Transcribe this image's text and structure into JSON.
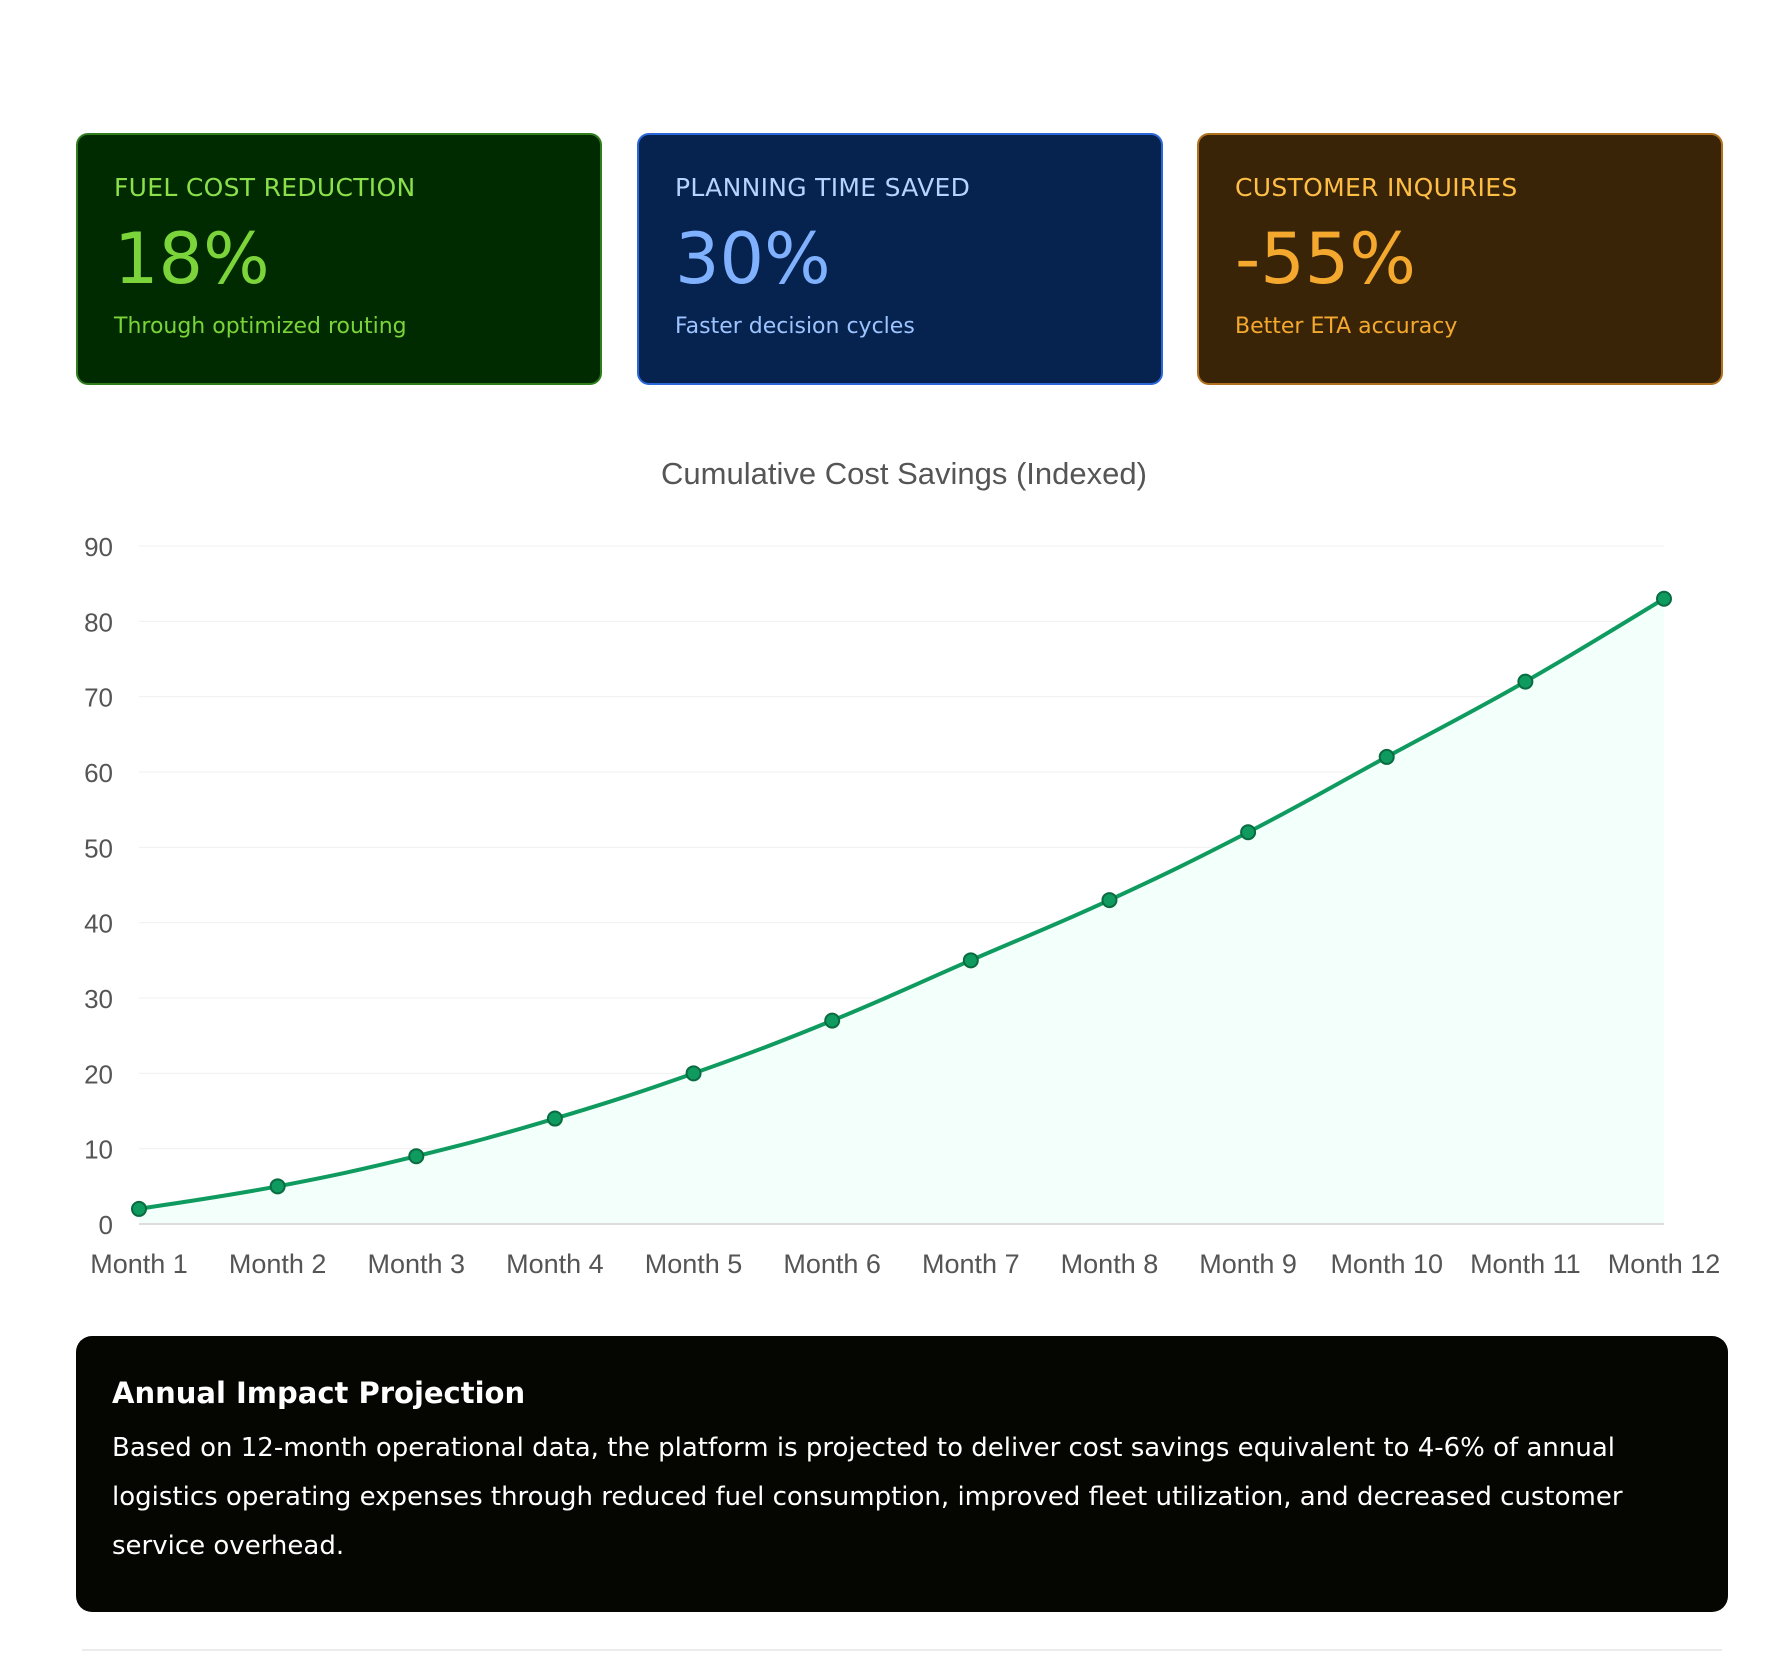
{
  "cards": [
    {
      "label": "FUEL COST REDUCTION",
      "value": "18%",
      "sub": "Through optimized routing",
      "accent": "#7bd43a",
      "background": "#002b00"
    },
    {
      "label": "PLANNING TIME SAVED",
      "value": "30%",
      "sub": "Faster decision cycles",
      "accent": "#7fb1ff",
      "background": "#06224f"
    },
    {
      "label": "CUSTOMER INQUIRIES",
      "value": "-55%",
      "sub": "Better ETA accuracy",
      "accent": "#f4a92e",
      "background": "#3a2408"
    }
  ],
  "chart_data": {
    "type": "area",
    "title": "Cumulative Cost Savings (Indexed)",
    "categories": [
      "Month 1",
      "Month 2",
      "Month 3",
      "Month 4",
      "Month 5",
      "Month 6",
      "Month 7",
      "Month 8",
      "Month 9",
      "Month 10",
      "Month 11",
      "Month 12"
    ],
    "series": [
      {
        "values": [
          2,
          5,
          9,
          14,
          20,
          27,
          35,
          43,
          52,
          62,
          72,
          83
        ],
        "color": "#0f9b5f"
      }
    ],
    "ylim": [
      0,
      90
    ],
    "yticks": [
      0,
      10,
      20,
      30,
      40,
      50,
      60,
      70,
      80,
      90
    ],
    "grid": true,
    "fill_color": "#f3fffb"
  },
  "impact": {
    "title": "Annual Impact Projection",
    "body": "Based on 12-month operational data, the platform is projected to deliver cost savings equivalent to 4-6% of annual logistics operating expenses through reduced fuel consumption, improved fleet utilization, and decreased customer service overhead."
  }
}
